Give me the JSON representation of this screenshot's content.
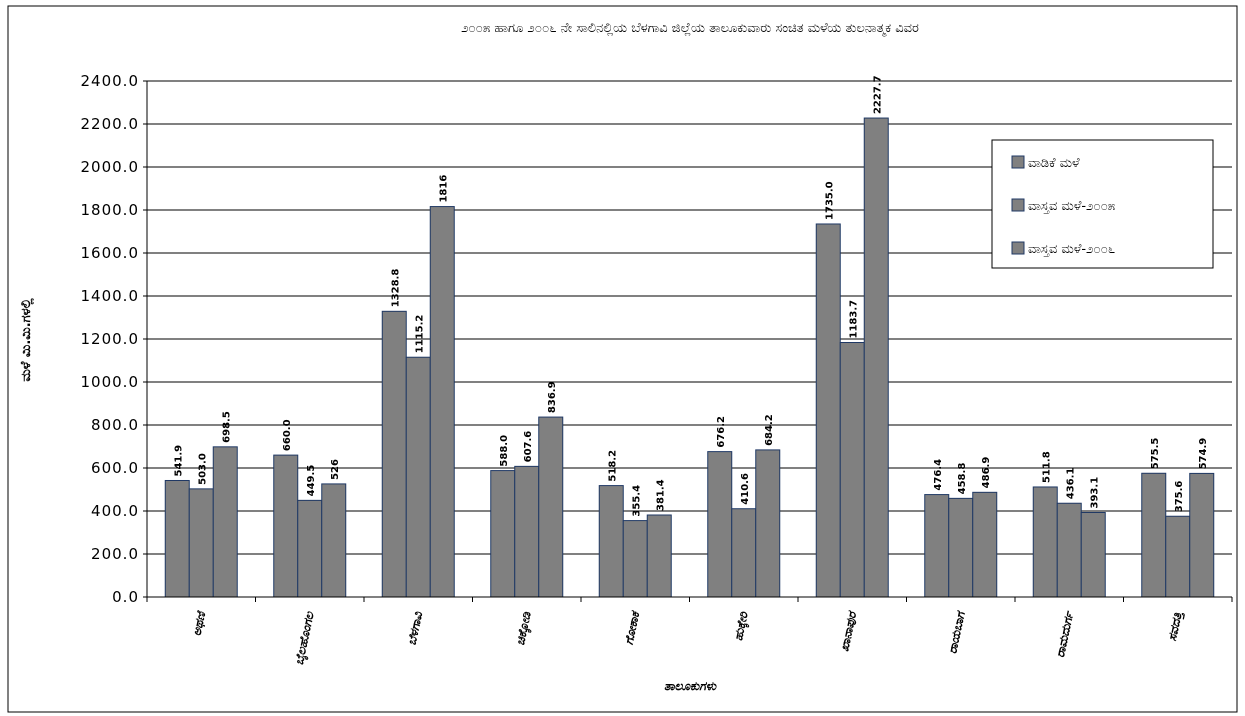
{
  "chart_data": {
    "type": "bar",
    "title": "೨೦೦೫ ಹಾಗೂ ೨೦೦೬ ನೇ ಸಾಲಿನಲ್ಲಿಯ ಬೆಳಗಾವಿ ಜಿಲ್ಲೆಯ ತಾಲೂಕುವಾರು ಸಂಚಿತ ಮಳೆಯ ತುಲನಾತ್ಮಕ ವಿವರ",
    "y_label": "ಮಳೆ ಮಿ.ಮಿ.ಗಳಲ್ಲಿ",
    "x_label": "ತಾಲೂಕುಗಳು",
    "categories": [
      "ಅಥಣಿ",
      "ಬೈಲಹೊಂಗಲ",
      "ಬೆಳಗಾವಿ",
      "ಚಿಕ್ಕೋಡಿ",
      "ಗೋಕಾಕ",
      "ಹುಕ್ಕೇರಿ",
      "ಖಾನಾಪುರ",
      "ರಾಯಬಾಗ",
      "ರಾಮದುರ್ಗ",
      "ಸವದತ್ತಿ"
    ],
    "series": [
      {
        "name": "ವಾಡಿಕೆ ಮಳೆ",
        "color": "#808080",
        "values": [
          541.9,
          660.0,
          1328.8,
          588.0,
          518.2,
          676.2,
          1735.0,
          476.4,
          511.8,
          575.5
        ],
        "value_labels": [
          "541.9",
          "660.0",
          "1328.8",
          "588.0",
          "518.2",
          "676.2",
          "1735.0",
          "476.4",
          "511.8",
          "575.5"
        ]
      },
      {
        "name": "ವಾಸ್ತವ ಮಳೆ-೨೦೦೫",
        "color": "#808080",
        "values": [
          503.0,
          449.5,
          1115.2,
          607.6,
          355.4,
          410.6,
          1183.7,
          458.8,
          436.1,
          375.6
        ],
        "value_labels": [
          "503.0",
          "449.5",
          "1115.2",
          "607.6",
          "355.4",
          "410.6",
          "1183.7",
          "458.8",
          "436.1",
          "375.6"
        ]
      },
      {
        "name": "ವಾಸ್ತವ ಮಳೆ-೨೦೦೬",
        "color": "#808080",
        "values": [
          698.5,
          526,
          1816,
          836.9,
          381.4,
          684.2,
          2227.7,
          486.9,
          393.1,
          574.9
        ],
        "value_labels": [
          "698.5",
          "526",
          "1816",
          "836.9",
          "381.4",
          "684.2",
          "2227.7",
          "486.9",
          "393.1",
          "574.9"
        ]
      }
    ],
    "ylim": [
      0,
      2400
    ],
    "yticks": [
      {
        "value": 0,
        "label": "0.0"
      },
      {
        "value": 200,
        "label": "200.0"
      },
      {
        "value": 400,
        "label": "400.0"
      },
      {
        "value": 600,
        "label": "600.0"
      },
      {
        "value": 800,
        "label": "800.0"
      },
      {
        "value": 1000,
        "label": "1000.0"
      },
      {
        "value": 1200,
        "label": "1200.0"
      },
      {
        "value": 1400,
        "label": "1400.0"
      },
      {
        "value": 1600,
        "label": "1600.0"
      },
      {
        "value": 1800,
        "label": "1800.0"
      },
      {
        "value": 2000,
        "label": "2000.0"
      },
      {
        "value": 2200,
        "label": "2200.0"
      },
      {
        "value": 2400,
        "label": "2400.0"
      }
    ],
    "grid": true,
    "legend": "upper right"
  }
}
